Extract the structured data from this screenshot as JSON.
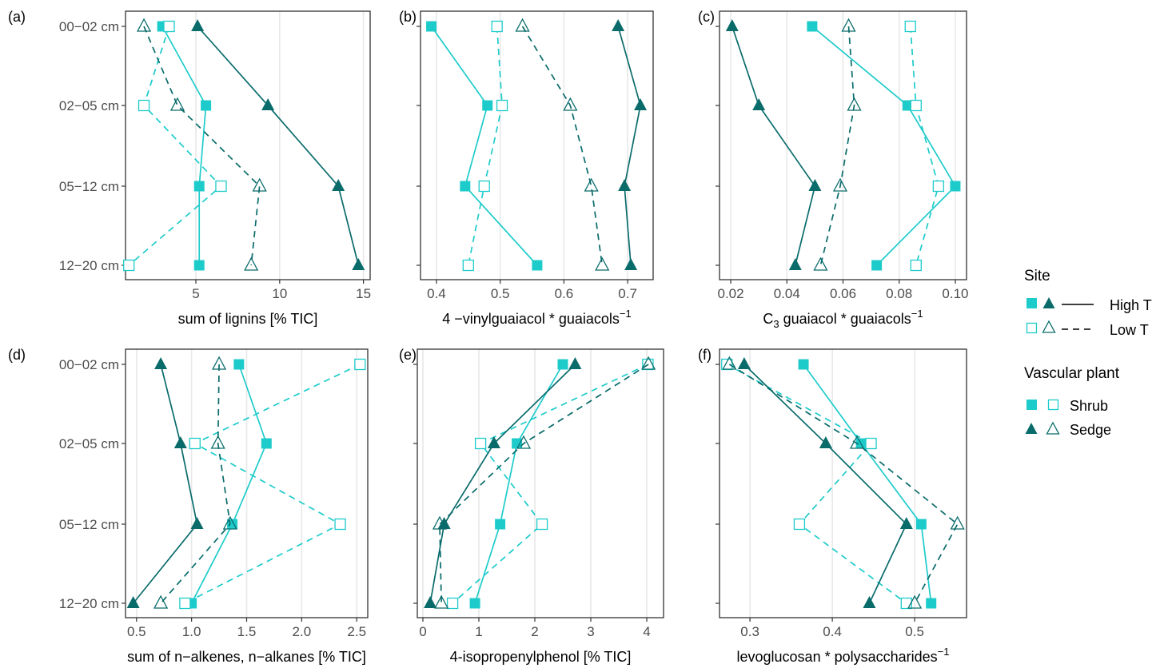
{
  "colors": {
    "shrub": "#1ecbcb",
    "sedge": "#0a6b6b",
    "grid": "#e8e8e8",
    "axis": "#333333"
  },
  "y_categories": [
    "00−02 cm",
    "02−05 cm",
    "05−12 cm",
    "12−20 cm"
  ],
  "legend": {
    "site_title": "Site",
    "high_label": "High T",
    "low_label": "Low T",
    "plant_title": "Vascular plant",
    "shrub_label": "Shrub",
    "sedge_label": "Sedge"
  },
  "chart_data": [
    {
      "type": "line",
      "panel": "(a)",
      "xlabel": "sum of lignins [% TIC]",
      "xlim": [
        0.8,
        15.4
      ],
      "xticks": [
        5,
        10,
        15
      ],
      "xtick_labels": [
        "5",
        "10",
        "15"
      ],
      "y_categories": [
        "00−02 cm",
        "02−05 cm",
        "05−12 cm",
        "12−20 cm"
      ],
      "series": [
        {
          "name": "Shrub High T",
          "plant": "shrub",
          "site": "high",
          "values": [
            3.0,
            5.6,
            5.2,
            5.2
          ]
        },
        {
          "name": "Shrub Low T",
          "plant": "shrub",
          "site": "low",
          "values": [
            3.4,
            1.9,
            6.5,
            1.0
          ]
        },
        {
          "name": "Sedge High T",
          "plant": "sedge",
          "site": "high",
          "values": [
            5.1,
            9.3,
            13.5,
            14.7
          ]
        },
        {
          "name": "Sedge Low T",
          "plant": "sedge",
          "site": "low",
          "values": [
            1.9,
            3.9,
            8.8,
            8.3
          ]
        }
      ]
    },
    {
      "type": "line",
      "panel": "(b)",
      "xlabel": "4 −vinylguaiacol * guaiacols",
      "xlabel_sup": "−1",
      "xlim": [
        0.375,
        0.74
      ],
      "xticks": [
        0.4,
        0.5,
        0.6,
        0.7
      ],
      "xtick_labels": [
        "0.4",
        "0.5",
        "0.6",
        "0.7"
      ],
      "y_categories": [
        "00−02 cm",
        "02−05 cm",
        "05−12 cm",
        "12−20 cm"
      ],
      "series": [
        {
          "name": "Shrub High T",
          "plant": "shrub",
          "site": "high",
          "values": [
            0.392,
            0.48,
            0.445,
            0.558
          ]
        },
        {
          "name": "Shrub Low T",
          "plant": "shrub",
          "site": "low",
          "values": [
            0.495,
            0.503,
            0.475,
            0.45
          ]
        },
        {
          "name": "Sedge High T",
          "plant": "sedge",
          "site": "high",
          "values": [
            0.685,
            0.72,
            0.695,
            0.705
          ]
        },
        {
          "name": "Sedge Low T",
          "plant": "sedge",
          "site": "low",
          "values": [
            0.535,
            0.61,
            0.643,
            0.66
          ]
        }
      ]
    },
    {
      "type": "line",
      "panel": "(c)",
      "xlabel_pre": "C",
      "xlabel_sub": "3",
      "xlabel": " guaiacol * guaiacols",
      "xlabel_sup": "−1",
      "xlim": [
        0.016,
        0.104
      ],
      "xticks": [
        0.02,
        0.04,
        0.06,
        0.08,
        0.1
      ],
      "xtick_labels": [
        "0.02",
        "0.04",
        "0.06",
        "0.08",
        "0.10"
      ],
      "y_categories": [
        "00−02 cm",
        "02−05 cm",
        "05−12 cm",
        "12−20 cm"
      ],
      "series": [
        {
          "name": "Shrub High T",
          "plant": "shrub",
          "site": "high",
          "values": [
            0.049,
            0.083,
            0.1,
            0.072
          ]
        },
        {
          "name": "Shrub Low T",
          "plant": "shrub",
          "site": "low",
          "values": [
            0.084,
            0.086,
            0.094,
            0.086
          ]
        },
        {
          "name": "Sedge High T",
          "plant": "sedge",
          "site": "high",
          "values": [
            0.0205,
            0.03,
            0.05,
            0.043
          ]
        },
        {
          "name": "Sedge Low T",
          "plant": "sedge",
          "site": "low",
          "values": [
            0.062,
            0.064,
            0.059,
            0.052
          ]
        }
      ]
    },
    {
      "type": "line",
      "panel": "(d)",
      "xlabel": "sum of n−alkenes, n−alkanes [% TIC]",
      "xlim": [
        0.4,
        2.6
      ],
      "xticks": [
        0.5,
        1.0,
        1.5,
        2.0,
        2.5
      ],
      "xtick_labels": [
        "0.5",
        "1.0",
        "1.5",
        "2.0",
        "2.5"
      ],
      "y_categories": [
        "00−02 cm",
        "02−05 cm",
        "05−12 cm",
        "12−20 cm"
      ],
      "series": [
        {
          "name": "Shrub High T",
          "plant": "shrub",
          "site": "high",
          "values": [
            1.43,
            1.68,
            1.37,
            1.0
          ]
        },
        {
          "name": "Shrub Low T",
          "plant": "shrub",
          "site": "low",
          "values": [
            2.53,
            1.03,
            2.35,
            0.94
          ]
        },
        {
          "name": "Sedge High T",
          "plant": "sedge",
          "site": "high",
          "values": [
            0.72,
            0.9,
            1.05,
            0.47
          ]
        },
        {
          "name": "Sedge Low T",
          "plant": "sedge",
          "site": "low",
          "values": [
            1.25,
            1.24,
            1.35,
            0.72
          ]
        }
      ]
    },
    {
      "type": "line",
      "panel": "(e)",
      "xlabel": "4-isopropenylphenol [% TIC]",
      "xlim": [
        -0.1,
        4.3
      ],
      "xticks": [
        0,
        1,
        2,
        3,
        4
      ],
      "xtick_labels": [
        "0",
        "1",
        "2",
        "3",
        "4"
      ],
      "y_categories": [
        "00−02 cm",
        "02−05 cm",
        "05−12 cm",
        "12−20 cm"
      ],
      "series": [
        {
          "name": "Shrub High T",
          "plant": "shrub",
          "site": "high",
          "values": [
            2.5,
            1.68,
            1.38,
            0.93
          ]
        },
        {
          "name": "Shrub Low T",
          "plant": "shrub",
          "site": "low",
          "values": [
            4.02,
            1.03,
            2.13,
            0.53
          ]
        },
        {
          "name": "Sedge High T",
          "plant": "sedge",
          "site": "high",
          "values": [
            2.72,
            1.27,
            0.38,
            0.13
          ]
        },
        {
          "name": "Sedge Low T",
          "plant": "sedge",
          "site": "low",
          "values": [
            4.03,
            1.8,
            0.3,
            0.33
          ]
        }
      ]
    },
    {
      "type": "line",
      "panel": "(f)",
      "xlabel": "levoglucosan * polysaccharides",
      "xlabel_sup": "−1",
      "xlim": [
        0.263,
        0.563
      ],
      "xticks": [
        0.3,
        0.4,
        0.5
      ],
      "xtick_labels": [
        "0.3",
        "0.4",
        "0.5"
      ],
      "y_categories": [
        "00−02 cm",
        "02−05 cm",
        "05−12 cm",
        "12−20 cm"
      ],
      "series": [
        {
          "name": "Shrub High T",
          "plant": "shrub",
          "site": "high",
          "values": [
            0.365,
            0.435,
            0.508,
            0.52
          ]
        },
        {
          "name": "Shrub Low T",
          "plant": "shrub",
          "site": "low",
          "values": [
            0.272,
            0.447,
            0.36,
            0.49
          ]
        },
        {
          "name": "Sedge High T",
          "plant": "sedge",
          "site": "high",
          "values": [
            0.293,
            0.392,
            0.49,
            0.445
          ]
        },
        {
          "name": "Sedge Low T",
          "plant": "sedge",
          "site": "low",
          "values": [
            0.275,
            0.43,
            0.552,
            0.5
          ]
        }
      ]
    }
  ]
}
